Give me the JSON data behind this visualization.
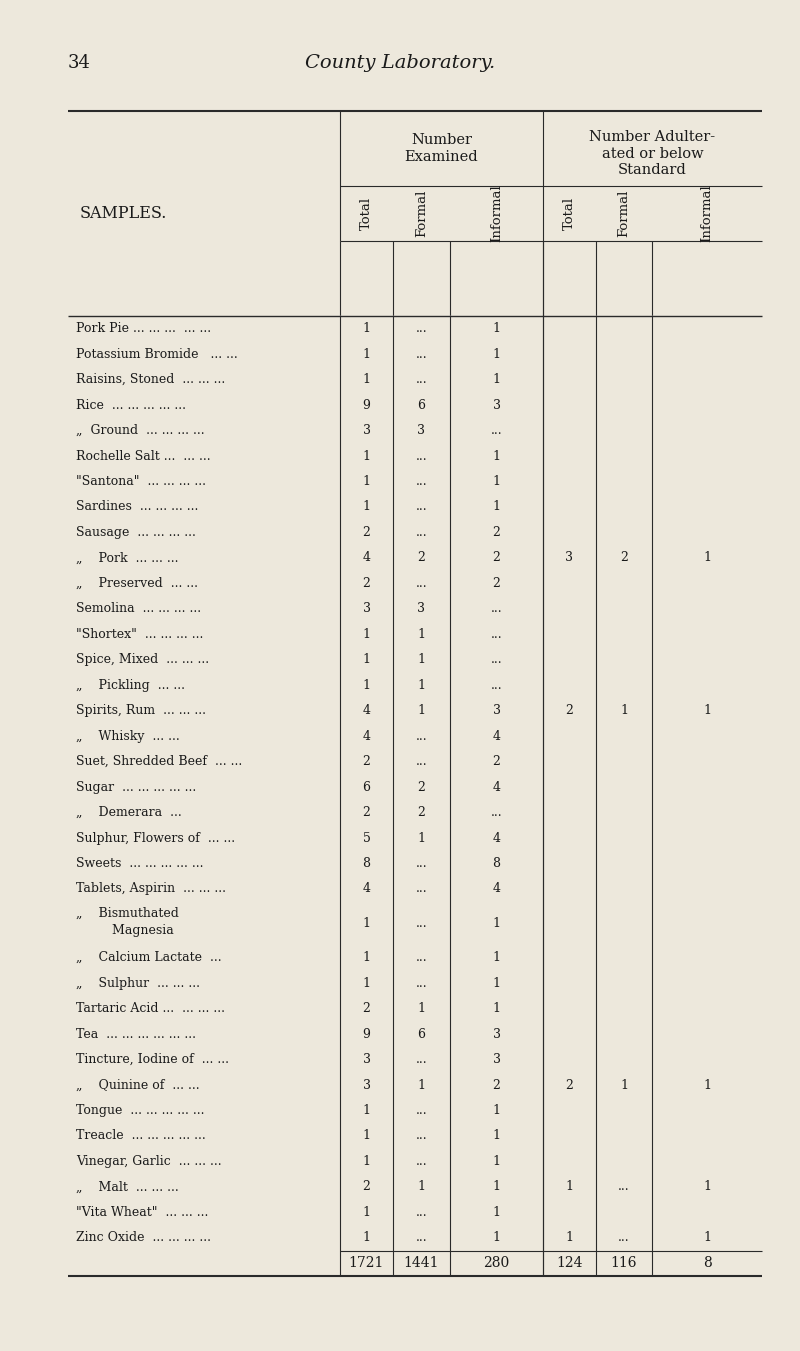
{
  "page_number": "34",
  "page_title": "County Laboratory.",
  "bg_color": "#ede8dc",
  "rows": [
    {
      "label": "Pork Pie ... ... ...  ... ...",
      "indent": false,
      "vals": [
        "1",
        "...",
        "1",
        "",
        "",
        ""
      ]
    },
    {
      "label": "Potassium Bromide   ... ...",
      "indent": false,
      "vals": [
        "1",
        "...",
        "1",
        "",
        "",
        ""
      ]
    },
    {
      "label": "Raisins, Stoned  ... ... ...",
      "indent": false,
      "vals": [
        "1",
        "...",
        "1",
        "",
        "",
        ""
      ]
    },
    {
      "label": "Rice  ... ... ... ... ...",
      "indent": false,
      "vals": [
        "9",
        "6",
        "3",
        "",
        "",
        ""
      ]
    },
    {
      "label": "„  Ground  ... ... ... ...",
      "indent": true,
      "vals": [
        "3",
        "3",
        "...",
        "",
        "",
        ""
      ]
    },
    {
      "label": "Rochelle Salt ...  ... ...",
      "indent": false,
      "vals": [
        "1",
        "...",
        "1",
        "",
        "",
        ""
      ]
    },
    {
      "label": "\"Santona\"  ... ... ... ...",
      "indent": false,
      "vals": [
        "1",
        "...",
        "1",
        "",
        "",
        ""
      ]
    },
    {
      "label": "Sardines  ... ... ... ...",
      "indent": false,
      "vals": [
        "1",
        "...",
        "1",
        "",
        "",
        ""
      ]
    },
    {
      "label": "Sausage  ... ... ... ...",
      "indent": false,
      "vals": [
        "2",
        "...",
        "2",
        "",
        "",
        ""
      ]
    },
    {
      "label": "„    Pork  ... ... ...",
      "indent": true,
      "vals": [
        "4",
        "2",
        "2",
        "3",
        "2",
        "1"
      ]
    },
    {
      "label": "„    Preserved  ... ...",
      "indent": true,
      "vals": [
        "2",
        "...",
        "2",
        "",
        "",
        ""
      ]
    },
    {
      "label": "Semolina  ... ... ... ...",
      "indent": false,
      "vals": [
        "3",
        "3",
        "...",
        "",
        "",
        ""
      ]
    },
    {
      "label": "\"Shortex\"  ... ... ... ...",
      "indent": false,
      "vals": [
        "1",
        "1",
        "...",
        "",
        "",
        ""
      ]
    },
    {
      "label": "Spice, Mixed  ... ... ...",
      "indent": false,
      "vals": [
        "1",
        "1",
        "...",
        "",
        "",
        ""
      ]
    },
    {
      "label": "„    Pickling  ... ...",
      "indent": true,
      "vals": [
        "1",
        "1",
        "...",
        "",
        "",
        ""
      ]
    },
    {
      "label": "Spirits, Rum  ... ... ...",
      "indent": false,
      "vals": [
        "4",
        "1",
        "3",
        "2",
        "1",
        "1"
      ]
    },
    {
      "label": "„    Whisky  ... ...",
      "indent": true,
      "vals": [
        "4",
        "...",
        "4",
        "",
        "",
        ""
      ]
    },
    {
      "label": "Suet, Shredded Beef  ... ...",
      "indent": false,
      "vals": [
        "2",
        "...",
        "2",
        "",
        "",
        ""
      ]
    },
    {
      "label": "Sugar  ... ... ... ... ...",
      "indent": false,
      "vals": [
        "6",
        "2",
        "4",
        "",
        "",
        ""
      ]
    },
    {
      "label": "„    Demerara  ...",
      "indent": true,
      "vals": [
        "2",
        "2",
        "...",
        "",
        "",
        ""
      ]
    },
    {
      "label": "Sulphur, Flowers of  ... ...",
      "indent": false,
      "vals": [
        "5",
        "1",
        "4",
        "",
        "",
        ""
      ]
    },
    {
      "label": "Sweets  ... ... ... ... ...",
      "indent": false,
      "vals": [
        "8",
        "...",
        "8",
        "",
        "",
        ""
      ]
    },
    {
      "label": "Tablets, Aspirin  ... ... ...",
      "indent": false,
      "vals": [
        "4",
        "...",
        "4",
        "",
        "",
        ""
      ]
    },
    {
      "label": "„    Bismuthated Magnesia",
      "indent": true,
      "two_line": true,
      "line1": "„    Bismuthated",
      "line2": "         Magnesia",
      "vals": [
        "1",
        "...",
        "1",
        "",
        "",
        ""
      ]
    },
    {
      "label": "„    Calcium Lactate  ...",
      "indent": true,
      "vals": [
        "1",
        "...",
        "1",
        "",
        "",
        ""
      ]
    },
    {
      "label": "„    Sulphur  ... ... ...",
      "indent": true,
      "vals": [
        "1",
        "...",
        "1",
        "",
        "",
        ""
      ]
    },
    {
      "label": "Tartaric Acid ...  ... ... ...",
      "indent": false,
      "vals": [
        "2",
        "1",
        "1",
        "",
        "",
        ""
      ]
    },
    {
      "label": "Tea  ... ... ... ... ... ...",
      "indent": false,
      "vals": [
        "9",
        "6",
        "3",
        "",
        "",
        ""
      ]
    },
    {
      "label": "Tincture, Iodine of  ... ...",
      "indent": false,
      "vals": [
        "3",
        "...",
        "3",
        "",
        "",
        ""
      ]
    },
    {
      "label": "„    Quinine of  ... ...",
      "indent": true,
      "vals": [
        "3",
        "1",
        "2",
        "2",
        "1",
        "1"
      ]
    },
    {
      "label": "Tongue  ... ... ... ... ...",
      "indent": false,
      "vals": [
        "1",
        "...",
        "1",
        "",
        "",
        ""
      ]
    },
    {
      "label": "Treacle  ... ... ... ... ...",
      "indent": false,
      "vals": [
        "1",
        "...",
        "1",
        "",
        "",
        ""
      ]
    },
    {
      "label": "Vinegar, Garlic  ... ... ...",
      "indent": false,
      "vals": [
        "1",
        "...",
        "1",
        "",
        "",
        ""
      ]
    },
    {
      "label": "„    Malt  ... ... ...",
      "indent": true,
      "vals": [
        "2",
        "1",
        "1",
        "1",
        "...",
        "1"
      ]
    },
    {
      "label": "\"Vita Wheat\"  ... ... ...",
      "indent": false,
      "vals": [
        "1",
        "...",
        "1",
        "",
        "",
        ""
      ]
    },
    {
      "label": "Zinc Oxide  ... ... ... ...",
      "indent": false,
      "vals": [
        "1",
        "...",
        "1",
        "1",
        "...",
        "1"
      ]
    }
  ],
  "totals": [
    "1721",
    "1441",
    "280",
    "124",
    "116",
    "8"
  ]
}
